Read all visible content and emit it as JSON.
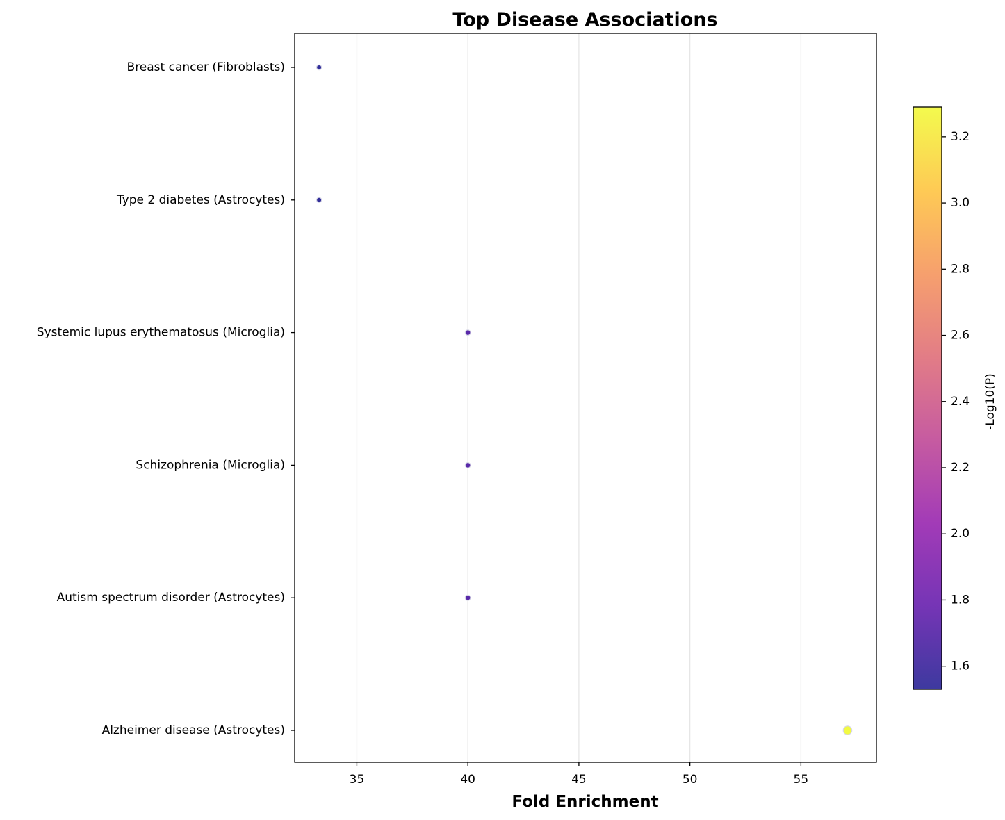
{
  "chart_data": {
    "type": "scatter",
    "title": "Top Disease Associations",
    "xlabel": "Fold Enrichment",
    "ylabel": "",
    "xlim": [
      32.2,
      58.4
    ],
    "xticks": [
      35,
      40,
      45,
      50,
      55
    ],
    "grid": "x",
    "categories": [
      "Breast cancer (Fibroblasts)",
      "Type 2 diabetes (Astrocytes)",
      "Systemic lupus erythematosus (Microglia)",
      "Schizophrenia (Microglia)",
      "Autism spectrum disorder (Astrocytes)",
      "Alzheimer disease (Astrocytes)"
    ],
    "points": [
      {
        "category": "Breast cancer (Fibroblasts)",
        "fold_enrichment": 33.3,
        "neg_log10_p": 1.53
      },
      {
        "category": "Type 2 diabetes (Astrocytes)",
        "fold_enrichment": 33.3,
        "neg_log10_p": 1.53
      },
      {
        "category": "Systemic lupus erythematosus (Microglia)",
        "fold_enrichment": 40.0,
        "neg_log10_p": 1.7
      },
      {
        "category": "Schizophrenia (Microglia)",
        "fold_enrichment": 40.0,
        "neg_log10_p": 1.7
      },
      {
        "category": "Autism spectrum disorder (Astrocytes)",
        "fold_enrichment": 40.0,
        "neg_log10_p": 1.7
      },
      {
        "category": "Alzheimer disease (Astrocytes)",
        "fold_enrichment": 57.1,
        "neg_log10_p": 3.29
      }
    ],
    "colorbar": {
      "label": "-Log10(P)",
      "range": [
        1.53,
        3.29
      ],
      "ticks": [
        1.6,
        1.8,
        2.0,
        2.2,
        2.4,
        2.6,
        2.8,
        3.0,
        3.2
      ],
      "colormap": "plasma",
      "colormap_stops": [
        "#0d0887",
        "#5302a3",
        "#8b0aa5",
        "#b83289",
        "#db5c68",
        "#f48849",
        "#febd2a",
        "#f0f921"
      ]
    }
  }
}
